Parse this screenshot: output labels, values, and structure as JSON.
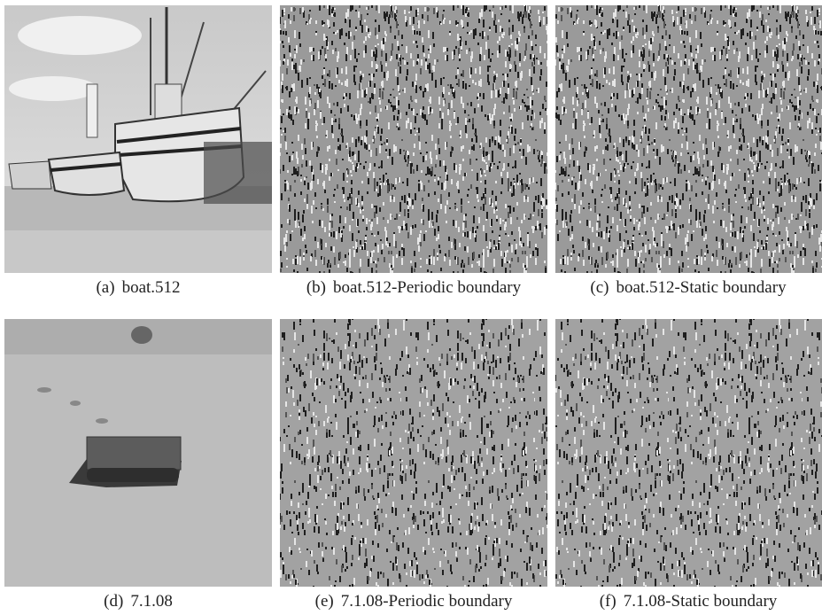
{
  "figure": {
    "panels": [
      {
        "label": "(a)",
        "caption": "boat.512"
      },
      {
        "label": "(b)",
        "caption": "boat.512-Periodic boundary"
      },
      {
        "label": "(c)",
        "caption": "boat.512-Static boundary"
      },
      {
        "label": "(d)",
        "caption": "7.1.08"
      },
      {
        "label": "(e)",
        "caption": "7.1.08-Periodic boundary"
      },
      {
        "label": "(f)",
        "caption": "7.1.08-Static boundary"
      }
    ]
  }
}
